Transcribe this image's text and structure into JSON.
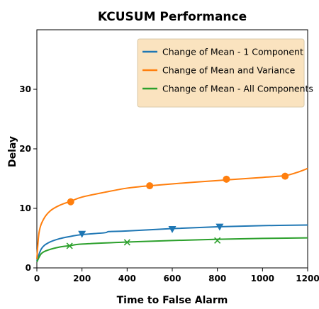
{
  "chart_data": {
    "type": "line",
    "title": "KCUSUM Performance",
    "xlabel": "Time to False Alarm",
    "ylabel": "Delay",
    "xlim": [
      0,
      1200
    ],
    "ylim": [
      0,
      40
    ],
    "xticks": [
      "0",
      "200",
      "400",
      "600",
      "800",
      "1000",
      "1200"
    ],
    "yticks": [
      "0",
      "10",
      "20",
      "30"
    ],
    "grid": false,
    "legend_position": "top-right",
    "series": [
      {
        "name": "Change of Mean - 1 Component",
        "color": "#1f77b4",
        "marker": "triangle-down",
        "x": [
          0,
          20,
          50,
          100,
          150,
          200,
          300,
          320,
          400,
          600,
          800,
          1000,
          1200
        ],
        "y": [
          1.2,
          3.2,
          4.2,
          4.9,
          5.3,
          5.6,
          5.9,
          6.1,
          6.2,
          6.6,
          6.9,
          7.1,
          7.2
        ],
        "marker_points": [
          [
            200,
            5.7
          ],
          [
            600,
            6.5
          ],
          [
            810,
            6.9
          ]
        ]
      },
      {
        "name": "Change of Mean and Variance",
        "color": "#ff7f0e",
        "marker": "circle",
        "x": [
          0,
          10,
          30,
          60,
          100,
          150,
          200,
          300,
          400,
          500,
          700,
          850,
          1000,
          1100,
          1150,
          1200
        ],
        "y": [
          1.5,
          6.0,
          8.2,
          9.6,
          10.5,
          11.2,
          11.9,
          12.7,
          13.4,
          13.8,
          14.4,
          14.8,
          15.2,
          15.5,
          16.0,
          16.7
        ],
        "marker_points": [
          [
            150,
            11.1
          ],
          [
            500,
            13.8
          ],
          [
            840,
            14.9
          ],
          [
            1100,
            15.4
          ]
        ]
      },
      {
        "name": "Change of Mean - All Components",
        "color": "#2ca02c",
        "marker": "x",
        "x": [
          0,
          20,
          50,
          100,
          150,
          200,
          400,
          600,
          800,
          1000,
          1200
        ],
        "y": [
          1.0,
          2.4,
          3.0,
          3.5,
          3.75,
          4.0,
          4.35,
          4.6,
          4.8,
          4.95,
          5.05
        ],
        "marker_points": [
          [
            145,
            3.7
          ],
          [
            400,
            4.3
          ],
          [
            800,
            4.6
          ]
        ]
      }
    ]
  }
}
